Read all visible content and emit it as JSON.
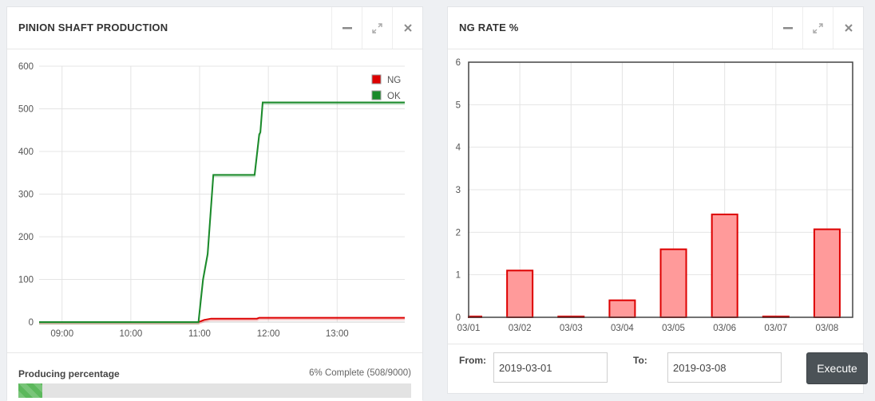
{
  "production_panel": {
    "title": "PINION SHAFT PRODUCTION",
    "controls": {
      "minimize_icon": "minus-icon",
      "expand_icon": "expand-icon",
      "close_icon": "close-icon"
    },
    "progress": {
      "label": "Producing percentage",
      "status": "6% Complete (508/9000)",
      "fraction": 0.06,
      "color": "#5cb85c"
    }
  },
  "ng_rate_panel": {
    "title": "NG RATE %",
    "controls": {
      "minimize_icon": "minus-icon",
      "expand_icon": "expand-icon",
      "close_icon": "close-icon"
    },
    "form": {
      "from_label": "From:",
      "from_value": "2019-03-01",
      "to_label": "To:",
      "to_value": "2019-03-08",
      "execute_label": "Execute"
    }
  },
  "chart_data": [
    {
      "type": "line",
      "ylim": [
        0,
        600
      ],
      "yticks": [
        "0",
        "100",
        "200",
        "300",
        "400",
        "500",
        "600"
      ],
      "xlim": [
        "08:40",
        "13:59"
      ],
      "xticks": [
        "09:00",
        "10:00",
        "11:00",
        "12:00",
        "13:00"
      ],
      "grid": true,
      "legend": "top-right",
      "series": [
        {
          "name": "NG",
          "color": "#dd0000",
          "points": [
            [
              "08:40",
              0
            ],
            [
              "10:59",
              0
            ],
            [
              "11:04",
              5
            ],
            [
              "11:10",
              8
            ],
            [
              "11:50",
              8
            ],
            [
              "11:52",
              10
            ],
            [
              "13:59",
              10
            ]
          ]
        },
        {
          "name": "OK",
          "color": "#1a8a2a",
          "points": [
            [
              "08:40",
              0
            ],
            [
              "10:59",
              0
            ],
            [
              "11:03",
              100
            ],
            [
              "11:07",
              160
            ],
            [
              "11:12",
              345
            ],
            [
              "11:48",
              345
            ],
            [
              "11:52",
              440
            ],
            [
              "11:53",
              445
            ],
            [
              "11:55",
              515
            ],
            [
              "13:59",
              515
            ]
          ]
        }
      ]
    },
    {
      "type": "bar",
      "categories": [
        "03/01",
        "03/02",
        "03/03",
        "03/04",
        "03/05",
        "03/06",
        "03/07",
        "03/08"
      ],
      "values": [
        0.02,
        1.1,
        0.02,
        0.4,
        1.6,
        2.42,
        0.02,
        2.07
      ],
      "ylim": [
        0,
        6
      ],
      "yticks": [
        "0",
        "1",
        "2",
        "3",
        "4",
        "5",
        "6"
      ],
      "grid": true,
      "bar_fill": "#ff9a9a",
      "bar_stroke": "#dd0000"
    }
  ]
}
